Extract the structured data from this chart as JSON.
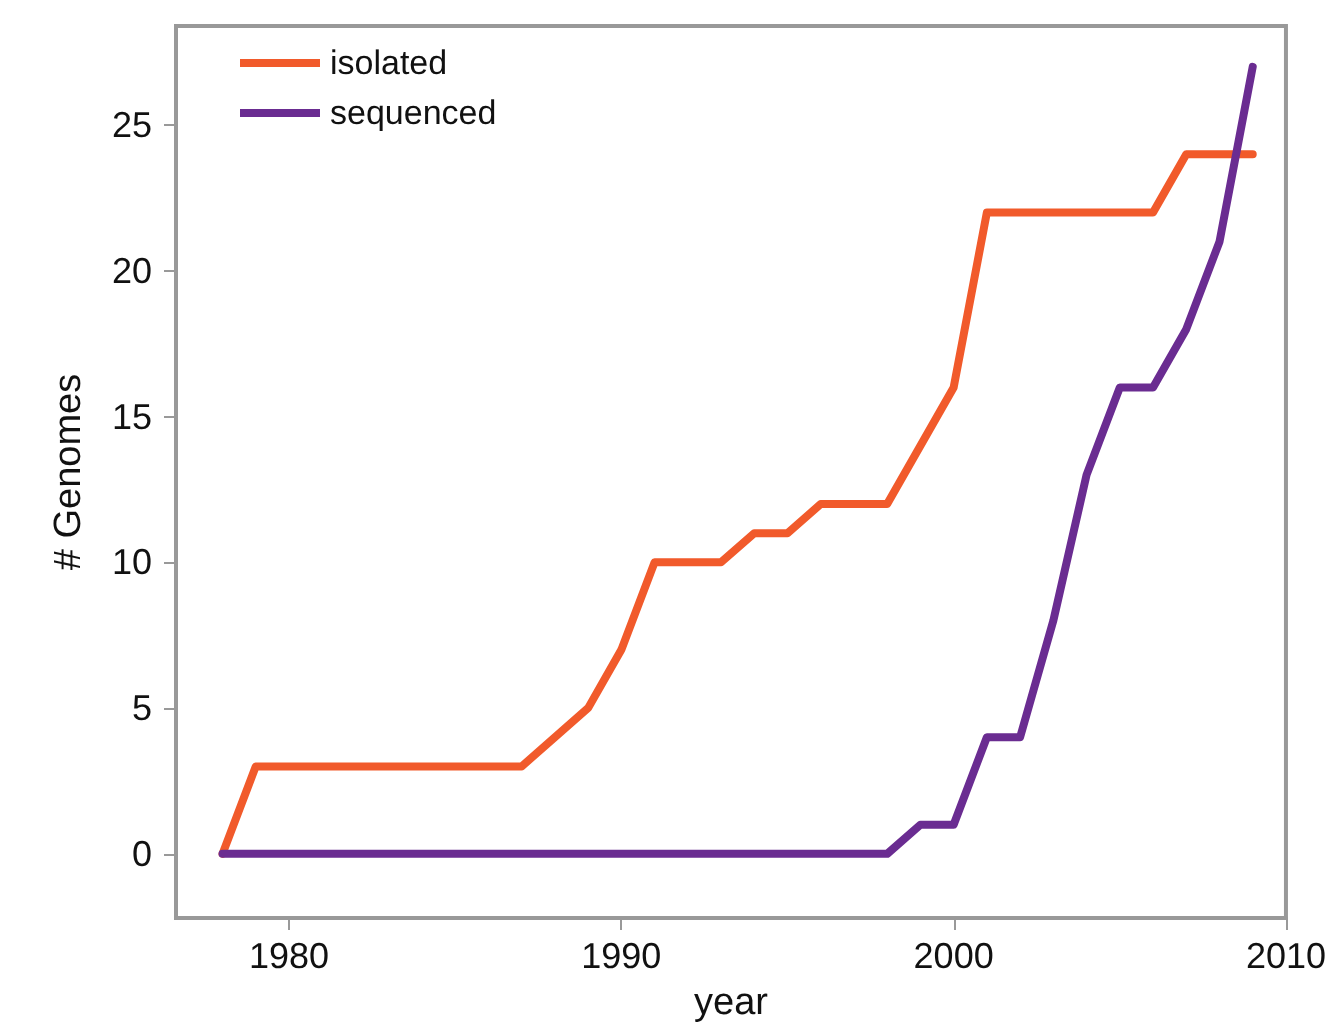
{
  "chart_data": {
    "type": "line",
    "xlabel": "year",
    "ylabel": "# Genomes",
    "x": [
      1978,
      1979,
      1980,
      1981,
      1982,
      1983,
      1984,
      1985,
      1986,
      1987,
      1988,
      1989,
      1990,
      1991,
      1992,
      1993,
      1994,
      1995,
      1996,
      1997,
      1998,
      1999,
      2000,
      2001,
      2002,
      2003,
      2004,
      2005,
      2006,
      2007,
      2008,
      2009
    ],
    "series": [
      {
        "name": "isolated",
        "color": "#f15a2b",
        "values": [
          0,
          3,
          3,
          3,
          3,
          3,
          3,
          3,
          3,
          3,
          4,
          5,
          7,
          10,
          10,
          10,
          11,
          11,
          12,
          12,
          12,
          14,
          16,
          22,
          22,
          22,
          22,
          22,
          22,
          24,
          24,
          24
        ]
      },
      {
        "name": "sequenced",
        "color": "#6a2c91",
        "values": [
          0,
          0,
          0,
          0,
          0,
          0,
          0,
          0,
          0,
          0,
          0,
          0,
          0,
          0,
          0,
          0,
          0,
          0,
          0,
          0,
          0,
          1,
          1,
          4,
          4,
          8,
          13,
          16,
          16,
          18,
          21,
          27
        ]
      }
    ],
    "xlim": [
      1976.6,
      2010
    ],
    "xticks": [
      1980,
      1990,
      2000,
      2010
    ],
    "ylim": [
      -2.2,
      28.4
    ],
    "yticks": [
      0,
      5,
      10,
      15,
      20,
      25
    ],
    "grid": false,
    "legend": "top left",
    "marker": "none",
    "line_style": "solid"
  }
}
